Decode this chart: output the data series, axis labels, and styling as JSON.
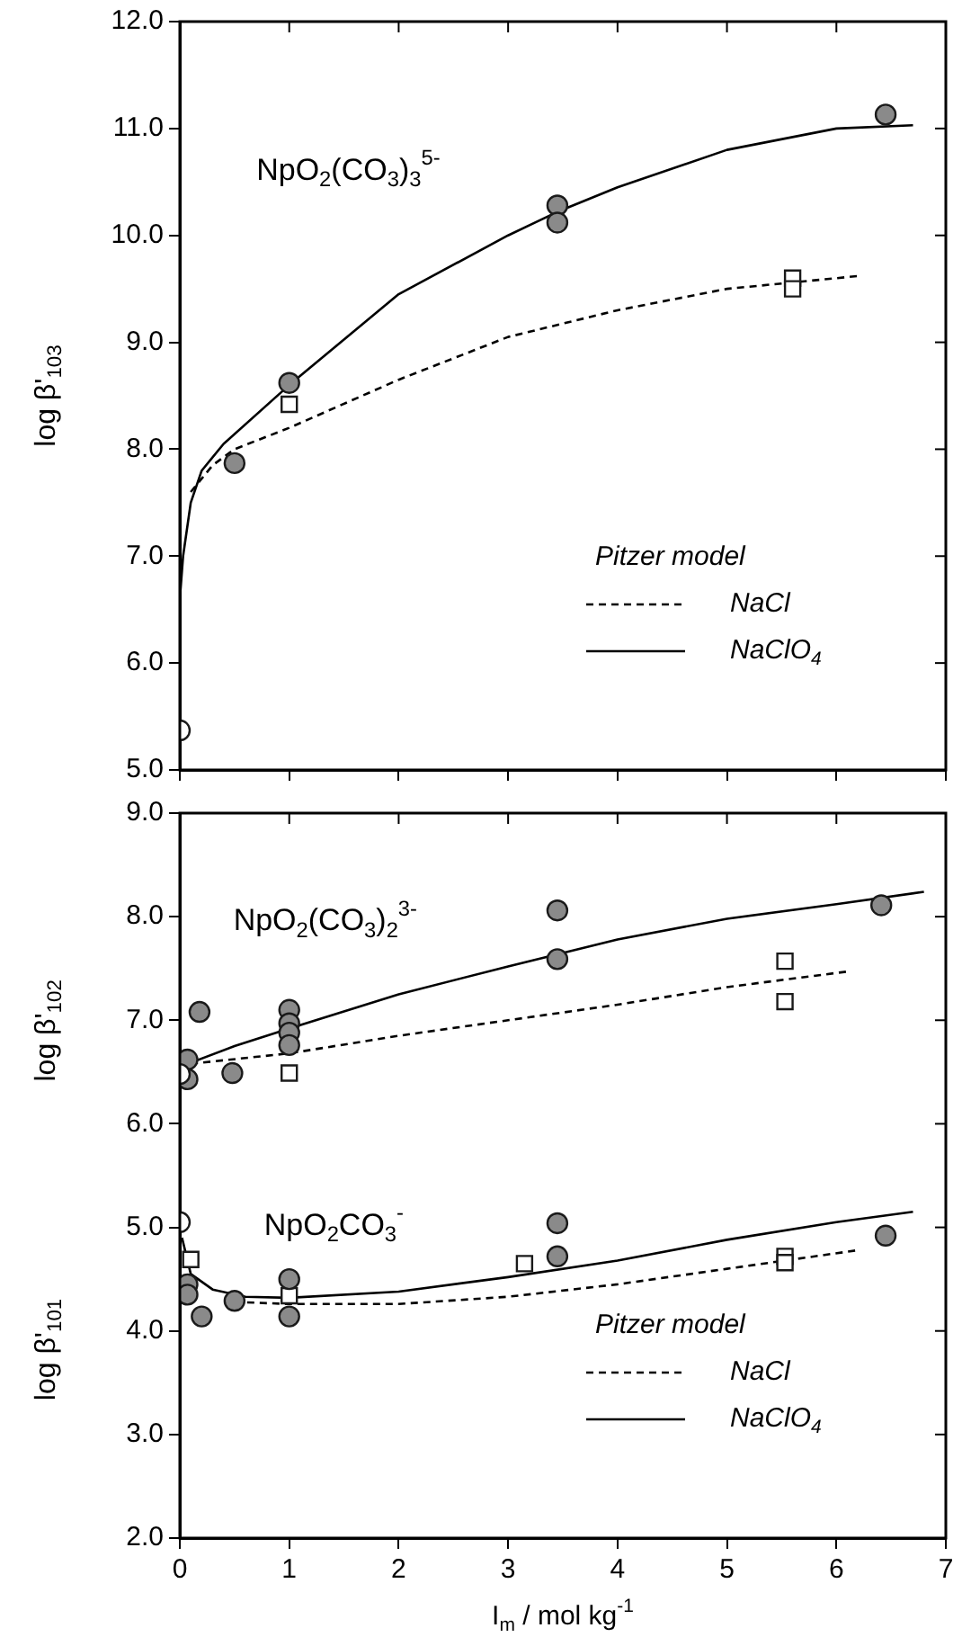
{
  "chart_data": [
    {
      "type": "scatter",
      "ylabel": "log β'$_{103}$",
      "legend_title": "Pitzer model",
      "legend": "bottom right",
      "grid": false,
      "tick_labels": "y",
      "annotations": [
        "NpO$_{2}$(CO$_{3}$)$_{3}$$^{5-}$"
      ],
      "xlim": [
        0,
        7
      ],
      "xticks": [
        0,
        1,
        2,
        3,
        4,
        5,
        6,
        7
      ],
      "ylim": [
        5,
        12
      ],
      "yticks": [
        {
          "value": 5,
          "label": "5.0"
        },
        {
          "value": 6,
          "label": "6.0"
        },
        {
          "value": 7,
          "label": "7.0"
        },
        {
          "value": 8,
          "label": "8.0"
        },
        {
          "value": 9,
          "label": "9.0"
        },
        {
          "value": 10,
          "label": "10.0"
        },
        {
          "value": 11,
          "label": "11.0"
        },
        {
          "value": 12,
          "label": "12.0"
        }
      ],
      "series": [
        {
          "type": "line",
          "name": "NaCl",
          "color": "#000000",
          "line_style": "dashed",
          "marker": "none",
          "x": [
            0.1,
            0.3,
            0.5,
            1,
            2,
            3,
            4,
            5,
            6.2
          ],
          "values": [
            7.6,
            7.85,
            8.0,
            8.2,
            8.65,
            9.05,
            9.3,
            9.5,
            9.62
          ]
        },
        {
          "type": "line",
          "name": "NaClO$_{4}$",
          "color": "#000000",
          "line_style": "solid",
          "marker": "none",
          "x": [
            0,
            0.03,
            0.1,
            0.2,
            0.4,
            1,
            2,
            3,
            3.45,
            4,
            5,
            6,
            6.7
          ],
          "values": [
            6.6,
            7.0,
            7.5,
            7.8,
            8.05,
            8.6,
            9.45,
            10.0,
            10.22,
            10.45,
            10.8,
            11.0,
            11.03
          ]
        },
        {
          "type": "scatter",
          "color": "#8a8a8a",
          "marker": "circle",
          "x": [
            0.5,
            1.0,
            3.45,
            3.45,
            6.45
          ],
          "values": [
            7.87,
            8.62,
            10.28,
            10.12,
            11.13
          ]
        },
        {
          "type": "scatter",
          "color": "#ffffff",
          "marker": "square",
          "x": [
            1.0,
            5.6,
            5.6
          ],
          "values": [
            8.42,
            9.6,
            9.5
          ]
        },
        {
          "type": "scatter",
          "color": "#ffffff",
          "marker": "circle",
          "x": [
            0
          ],
          "values": [
            5.37
          ]
        }
      ]
    },
    {
      "type": "scatter",
      "ylabel": "log β'$_{102}$",
      "xlabel": "I$_{m}$ / mol kg$^{-1}$",
      "legend_title": "Pitzer model",
      "legend": "bottom right",
      "grid": false,
      "annotations": [
        "NpO$_{2}$(CO$_{3}$)$_{2}$$^{3-}$",
        "NpO$_{2}$CO$_{3}$$^{-}$",
        "log β'$_{101}$"
      ],
      "xlim": [
        0,
        7
      ],
      "xticks": [
        0,
        1,
        2,
        3,
        4,
        5,
        6,
        7
      ],
      "ylim": [
        2,
        9
      ],
      "yticks": [
        {
          "value": 2,
          "label": "2.0"
        },
        {
          "value": 3,
          "label": "3.0"
        },
        {
          "value": 4,
          "label": "4.0"
        },
        {
          "value": 5,
          "label": "5.0"
        },
        {
          "value": 6,
          "label": "6.0"
        },
        {
          "value": 7,
          "label": "7.0"
        },
        {
          "value": 8,
          "label": "8.0"
        },
        {
          "value": 9,
          "label": "9.0"
        }
      ],
      "series": [
        {
          "type": "line",
          "name": "NaCl",
          "color": "#000000",
          "line_style": "dashed",
          "marker": "none",
          "x": [
            0.1,
            1,
            2,
            3,
            4,
            5,
            6.1
          ],
          "values": [
            6.58,
            6.68,
            6.85,
            7.0,
            7.15,
            7.32,
            7.47
          ]
        },
        {
          "type": "line",
          "name": "NaClO$_{4}$",
          "color": "#000000",
          "line_style": "solid",
          "marker": "none",
          "x": [
            0,
            0.5,
            1,
            2,
            3,
            4,
            5,
            6,
            6.8
          ],
          "values": [
            6.55,
            6.75,
            6.92,
            7.25,
            7.52,
            7.78,
            7.98,
            8.12,
            8.24
          ]
        },
        {
          "type": "line",
          "color": "#000000",
          "line_style": "dashed",
          "marker": "none",
          "x": [
            0.5,
            1,
            2,
            3,
            4,
            5,
            6.2
          ],
          "values": [
            4.28,
            4.26,
            4.26,
            4.33,
            4.45,
            4.6,
            4.78
          ]
        },
        {
          "type": "line",
          "color": "#000000",
          "line_style": "solid",
          "marker": "none",
          "x": [
            0.02,
            0.1,
            0.3,
            0.6,
            1,
            2,
            3,
            4,
            5,
            6,
            6.7
          ],
          "values": [
            4.9,
            4.55,
            4.4,
            4.33,
            4.32,
            4.38,
            4.52,
            4.68,
            4.88,
            5.05,
            5.15
          ]
        },
        {
          "type": "scatter",
          "color": "#8a8a8a",
          "marker": "circle",
          "x": [
            0.07,
            0.07,
            0.18,
            0.48,
            1.0,
            1.0,
            1.0,
            1.0,
            3.45,
            3.45,
            6.41
          ],
          "values": [
            6.62,
            6.43,
            7.08,
            6.49,
            7.1,
            6.97,
            6.88,
            6.76,
            8.06,
            7.59,
            8.11
          ]
        },
        {
          "type": "scatter",
          "color": "#ffffff",
          "marker": "square",
          "x": [
            1.0,
            5.53,
            5.53
          ],
          "values": [
            6.49,
            7.57,
            7.18
          ]
        },
        {
          "type": "scatter",
          "color": "#8a8a8a",
          "marker": "circle",
          "x": [
            0.07,
            0.07,
            0.2,
            0.5,
            1.0,
            1.0,
            3.45,
            3.45,
            6.45
          ],
          "values": [
            4.45,
            4.35,
            4.14,
            4.29,
            4.5,
            4.14,
            5.04,
            4.72,
            4.92
          ]
        },
        {
          "type": "scatter",
          "color": "#ffffff",
          "marker": "square",
          "x": [
            0.1,
            1.0,
            3.15,
            5.53,
            5.53
          ],
          "values": [
            4.69,
            4.34,
            4.65,
            4.72,
            4.66
          ]
        },
        {
          "type": "scatter",
          "color": "#ffffff",
          "marker": "circle",
          "x": [
            0,
            0
          ],
          "values": [
            6.48,
            5.05
          ]
        }
      ]
    }
  ]
}
